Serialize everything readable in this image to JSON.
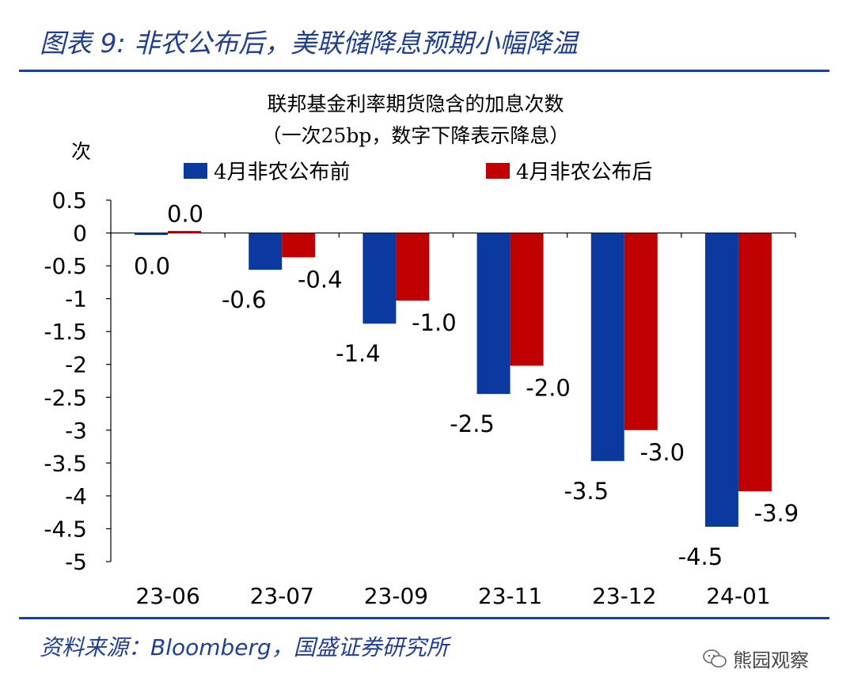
{
  "figure": {
    "title": "图表 9:  非农公布后，美联储降息预期小幅降温",
    "source": "资料来源：Bloomberg，国盛证券研究所",
    "watermark": "熊园观察",
    "watermark_icon": "wechat-icon"
  },
  "chart_data": {
    "type": "bar",
    "title": "联邦基金利率期货隐含的加息次数",
    "subtitle": "（一次25bp，数字下降表示降息）",
    "ylabel": "次",
    "xlabel": "",
    "categories": [
      "23-06",
      "23-07",
      "23-09",
      "23-11",
      "23-12",
      "24-01"
    ],
    "series": [
      {
        "name": "4月非农公布前",
        "color": "#0b3a9e",
        "values": [
          -0.03,
          -0.56,
          -1.38,
          -2.45,
          -3.47,
          -4.47
        ],
        "labels": [
          "0.0",
          "-0.6",
          "-1.4",
          "-2.5",
          "-3.5",
          "-4.5"
        ]
      },
      {
        "name": "4月非农公布后",
        "color": "#c00000",
        "values": [
          0.03,
          -0.37,
          -1.03,
          -2.02,
          -3.0,
          -3.93
        ],
        "labels": [
          "0.0",
          "-0.4",
          "-1.0",
          "-2.0",
          "-3.0",
          "-3.9"
        ]
      }
    ],
    "ylim": [
      -5,
      0.5
    ],
    "yticks": [
      0.5,
      0,
      -0.5,
      -1,
      -1.5,
      -2,
      -2.5,
      -3,
      -3.5,
      -4,
      -4.5,
      -5
    ],
    "ytick_labels": [
      "0.5",
      "0",
      "-0.5",
      "-1",
      "-1.5",
      "-2",
      "-2.5",
      "-3",
      "-3.5",
      "-4",
      "-4.5",
      "-5"
    ],
    "grid": false,
    "legend_position": "top"
  }
}
